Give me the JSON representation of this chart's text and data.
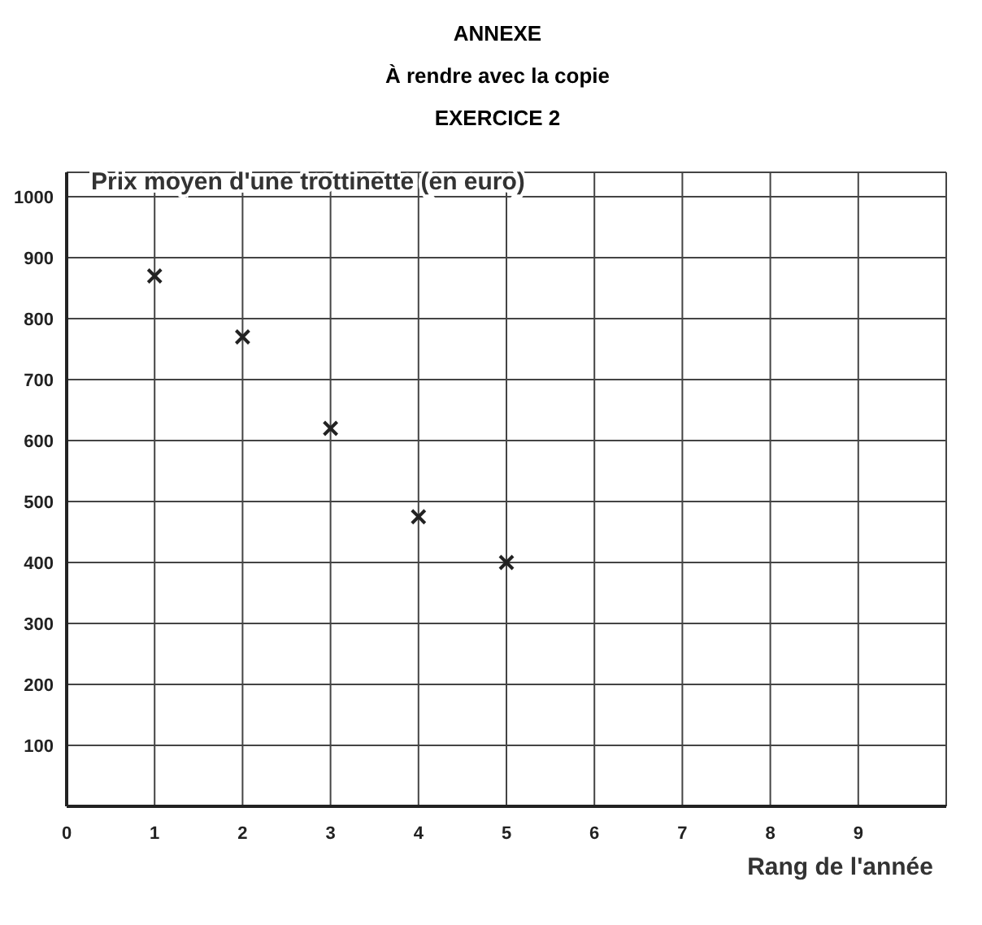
{
  "chart_data": {
    "type": "scatter",
    "title": "ANNEXE",
    "subtitle": "À rendre avec la copie",
    "annotations": [
      "EXERCICE 2"
    ],
    "xlabel": "Rang de l'année",
    "ylabel": "Prix moyen d'une trottinette (en euro)",
    "x": [
      1,
      2,
      3,
      4,
      5
    ],
    "values": [
      870,
      770,
      620,
      475,
      400
    ],
    "color": "#222222",
    "marker": "cross",
    "grid": true,
    "xlim": [
      0,
      10
    ],
    "xticks": [
      0,
      1,
      2,
      3,
      4,
      5,
      6,
      7,
      8,
      9
    ],
    "ylim": [
      0,
      1040
    ],
    "yticks": [
      100,
      200,
      300,
      400,
      500,
      600,
      700,
      800,
      900,
      1000
    ]
  }
}
